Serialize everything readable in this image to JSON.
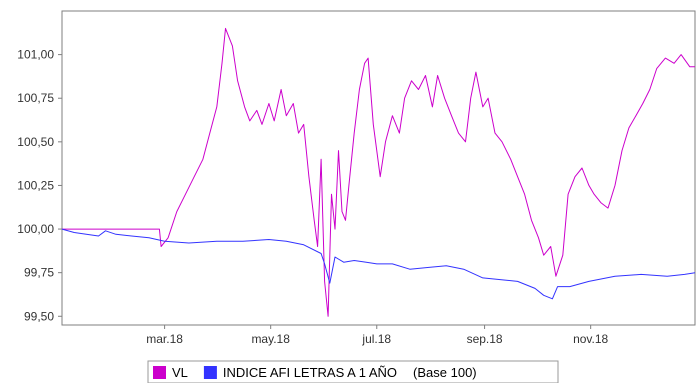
{
  "chart_data": {
    "type": "line",
    "title": "",
    "xlabel": "",
    "ylabel": "",
    "x_ticks": [
      "mar.18",
      "may.18",
      "jul.18",
      "sep.18",
      "nov.18"
    ],
    "y_ticks": [
      "101,00",
      "100,75",
      "100,50",
      "100,25",
      "100,00",
      "99,75",
      "99,50"
    ],
    "ylim": [
      99.45,
      101.25
    ],
    "x_range": [
      "2018-01-01",
      "2018-12-31"
    ],
    "grid": false,
    "legend_position": "bottom",
    "legend_note": "(Base 100)",
    "series": [
      {
        "name": "VL",
        "color": "#cc00cc",
        "points": [
          [
            "2018-01-01",
            100.0
          ],
          [
            "2018-02-15",
            100.0
          ],
          [
            "2018-02-26",
            100.0
          ],
          [
            "2018-02-27",
            99.9
          ],
          [
            "2018-03-03",
            99.95
          ],
          [
            "2018-03-08",
            100.1
          ],
          [
            "2018-03-13",
            100.2
          ],
          [
            "2018-03-18",
            100.3
          ],
          [
            "2018-03-23",
            100.4
          ],
          [
            "2018-03-27",
            100.55
          ],
          [
            "2018-03-31",
            100.7
          ],
          [
            "2018-04-03",
            100.95
          ],
          [
            "2018-04-05",
            101.15
          ],
          [
            "2018-04-09",
            101.05
          ],
          [
            "2018-04-12",
            100.85
          ],
          [
            "2018-04-16",
            100.7
          ],
          [
            "2018-04-19",
            100.62
          ],
          [
            "2018-04-23",
            100.68
          ],
          [
            "2018-04-26",
            100.6
          ],
          [
            "2018-04-30",
            100.72
          ],
          [
            "2018-05-03",
            100.62
          ],
          [
            "2018-05-07",
            100.8
          ],
          [
            "2018-05-10",
            100.65
          ],
          [
            "2018-05-14",
            100.72
          ],
          [
            "2018-05-17",
            100.55
          ],
          [
            "2018-05-20",
            100.6
          ],
          [
            "2018-05-23",
            100.3
          ],
          [
            "2018-05-26",
            100.05
          ],
          [
            "2018-05-28",
            99.9
          ],
          [
            "2018-05-30",
            100.4
          ],
          [
            "2018-06-01",
            99.7
          ],
          [
            "2018-06-03",
            99.5
          ],
          [
            "2018-06-05",
            100.2
          ],
          [
            "2018-06-07",
            100.0
          ],
          [
            "2018-06-09",
            100.45
          ],
          [
            "2018-06-11",
            100.1
          ],
          [
            "2018-06-13",
            100.05
          ],
          [
            "2018-06-15",
            100.25
          ],
          [
            "2018-06-18",
            100.55
          ],
          [
            "2018-06-21",
            100.8
          ],
          [
            "2018-06-24",
            100.95
          ],
          [
            "2018-06-26",
            100.98
          ],
          [
            "2018-06-29",
            100.6
          ],
          [
            "2018-07-03",
            100.3
          ],
          [
            "2018-07-06",
            100.5
          ],
          [
            "2018-07-10",
            100.65
          ],
          [
            "2018-07-14",
            100.55
          ],
          [
            "2018-07-17",
            100.75
          ],
          [
            "2018-07-21",
            100.85
          ],
          [
            "2018-07-25",
            100.8
          ],
          [
            "2018-07-29",
            100.88
          ],
          [
            "2018-08-02",
            100.7
          ],
          [
            "2018-08-05",
            100.88
          ],
          [
            "2018-08-09",
            100.75
          ],
          [
            "2018-08-13",
            100.65
          ],
          [
            "2018-08-17",
            100.55
          ],
          [
            "2018-08-21",
            100.5
          ],
          [
            "2018-08-24",
            100.75
          ],
          [
            "2018-08-27",
            100.9
          ],
          [
            "2018-08-31",
            100.7
          ],
          [
            "2018-09-03",
            100.75
          ],
          [
            "2018-09-07",
            100.55
          ],
          [
            "2018-09-11",
            100.5
          ],
          [
            "2018-09-16",
            100.4
          ],
          [
            "2018-09-20",
            100.3
          ],
          [
            "2018-09-24",
            100.2
          ],
          [
            "2018-09-28",
            100.05
          ],
          [
            "2018-10-02",
            99.95
          ],
          [
            "2018-10-05",
            99.85
          ],
          [
            "2018-10-09",
            99.9
          ],
          [
            "2018-10-12",
            99.73
          ],
          [
            "2018-10-16",
            99.85
          ],
          [
            "2018-10-19",
            100.2
          ],
          [
            "2018-10-23",
            100.3
          ],
          [
            "2018-10-27",
            100.35
          ],
          [
            "2018-10-31",
            100.25
          ],
          [
            "2018-11-03",
            100.2
          ],
          [
            "2018-11-07",
            100.15
          ],
          [
            "2018-11-11",
            100.12
          ],
          [
            "2018-11-15",
            100.25
          ],
          [
            "2018-11-19",
            100.45
          ],
          [
            "2018-11-23",
            100.58
          ],
          [
            "2018-11-27",
            100.65
          ],
          [
            "2018-12-01",
            100.72
          ],
          [
            "2018-12-05",
            100.8
          ],
          [
            "2018-12-09",
            100.92
          ],
          [
            "2018-12-14",
            100.98
          ],
          [
            "2018-12-19",
            100.95
          ],
          [
            "2018-12-23",
            101.0
          ],
          [
            "2018-12-28",
            100.93
          ],
          [
            "2018-12-31",
            100.93
          ]
        ]
      },
      {
        "name": "INDICE AFI LETRAS A 1 AÑO",
        "color": "#3333ff",
        "points": [
          [
            "2018-01-01",
            100.0
          ],
          [
            "2018-01-08",
            99.98
          ],
          [
            "2018-01-15",
            99.97
          ],
          [
            "2018-01-22",
            99.96
          ],
          [
            "2018-01-26",
            99.99
          ],
          [
            "2018-02-01",
            99.97
          ],
          [
            "2018-02-10",
            99.96
          ],
          [
            "2018-02-20",
            99.95
          ],
          [
            "2018-03-01",
            99.93
          ],
          [
            "2018-03-15",
            99.92
          ],
          [
            "2018-03-31",
            99.93
          ],
          [
            "2018-04-15",
            99.93
          ],
          [
            "2018-04-30",
            99.94
          ],
          [
            "2018-05-10",
            99.93
          ],
          [
            "2018-05-20",
            99.91
          ],
          [
            "2018-05-30",
            99.86
          ],
          [
            "2018-06-01",
            99.8
          ],
          [
            "2018-06-04",
            99.69
          ],
          [
            "2018-06-07",
            99.84
          ],
          [
            "2018-06-12",
            99.81
          ],
          [
            "2018-06-18",
            99.82
          ],
          [
            "2018-06-25",
            99.81
          ],
          [
            "2018-07-01",
            99.8
          ],
          [
            "2018-07-10",
            99.8
          ],
          [
            "2018-07-20",
            99.77
          ],
          [
            "2018-07-31",
            99.78
          ],
          [
            "2018-08-10",
            99.79
          ],
          [
            "2018-08-20",
            99.77
          ],
          [
            "2018-08-31",
            99.72
          ],
          [
            "2018-09-10",
            99.71
          ],
          [
            "2018-09-20",
            99.7
          ],
          [
            "2018-09-30",
            99.66
          ],
          [
            "2018-10-05",
            99.62
          ],
          [
            "2018-10-10",
            99.6
          ],
          [
            "2018-10-13",
            99.67
          ],
          [
            "2018-10-20",
            99.67
          ],
          [
            "2018-10-31",
            99.7
          ],
          [
            "2018-11-15",
            99.73
          ],
          [
            "2018-11-30",
            99.74
          ],
          [
            "2018-12-15",
            99.73
          ],
          [
            "2018-12-25",
            99.74
          ],
          [
            "2018-12-31",
            99.75
          ]
        ]
      }
    ]
  },
  "legend": {
    "items": [
      {
        "label": "VL",
        "color": "#cc00cc"
      },
      {
        "label": "INDICE AFI LETRAS A 1 AÑO",
        "color": "#3333ff"
      }
    ],
    "note": "(Base 100)"
  }
}
